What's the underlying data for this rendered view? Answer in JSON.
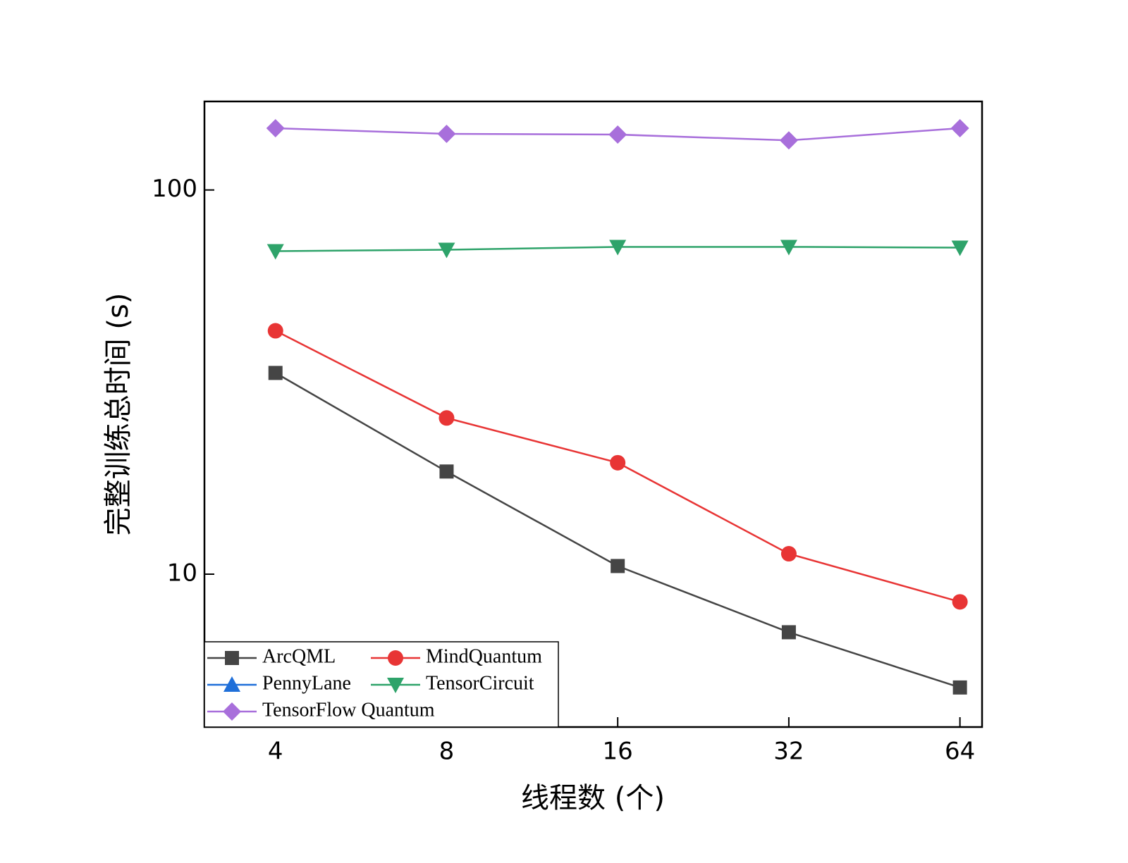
{
  "chart_data": {
    "type": "line",
    "x_label": "线程数 (个)",
    "y_label": "完整训练总时间 (s)",
    "x": [
      4,
      8,
      16,
      32,
      64
    ],
    "xlim": [
      3,
      70
    ],
    "xticks": [
      4,
      8,
      16,
      32,
      64
    ],
    "x_log_base": 2,
    "ylim": [
      4,
      170
    ],
    "yticks": [
      10,
      100
    ],
    "y_log": true,
    "legend": "lower left",
    "series": [
      {
        "name": "ArcQML",
        "color": "#454545",
        "marker": "square",
        "values": [
          33.4,
          18.5,
          10.5,
          7.06,
          5.07
        ]
      },
      {
        "name": "MindQuantum",
        "color": "#e83535",
        "marker": "circle",
        "values": [
          43.0,
          25.5,
          19.5,
          11.3,
          8.47
        ]
      },
      {
        "name": "PennyLane",
        "color": "#1f6fd9",
        "marker": "triangle-up",
        "values": [
          null,
          null,
          null,
          null,
          null
        ]
      },
      {
        "name": "TensorCircuit",
        "color": "#2ea36a",
        "marker": "triangle-down",
        "values": [
          69.3,
          69.9,
          71.1,
          71.1,
          70.8
        ]
      },
      {
        "name": "TensorFlow Quantum",
        "color": "#a86fdb",
        "marker": "diamond",
        "values": [
          144.8,
          140.0,
          139.4,
          134.6,
          144.8
        ]
      }
    ]
  }
}
